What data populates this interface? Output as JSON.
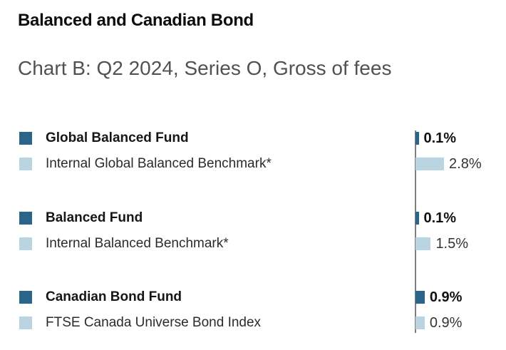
{
  "header": {
    "title": "Balanced and Canadian Bond",
    "subtitle": "Chart B: Q2 2024, Series O, Gross of fees"
  },
  "colors": {
    "fund_bar": "#2A6489",
    "benchmark_bar": "#BAD5E1",
    "axis_line": "#7E7E7E",
    "title_text": "#0D0D0D",
    "subtitle_text": "#4F5255",
    "fund_label_text": "#161616",
    "benchmark_label_text": "#2B2B2B",
    "fund_value_text": "#111111",
    "benchmark_value_text": "#333333"
  },
  "chart_data": {
    "type": "bar",
    "orientation": "horizontal",
    "unit": "%",
    "title": "Balanced and Canadian Bond",
    "subtitle": "Chart B: Q2 2024, Series O, Gross of fees",
    "value_axis": {
      "baseline": 0,
      "gridlines": false,
      "tick_labels": []
    },
    "legend_position": "left-of-rows",
    "groups": [
      {
        "rows": [
          {
            "kind": "fund",
            "label": "Global Balanced Fund",
            "value": 0.1,
            "value_label": "0.1%"
          },
          {
            "kind": "benchmark",
            "label": "Internal Global Balanced Benchmark*",
            "value": 2.8,
            "value_label": "2.8%"
          }
        ]
      },
      {
        "rows": [
          {
            "kind": "fund",
            "label": "Balanced Fund",
            "value": 0.1,
            "value_label": "0.1%"
          },
          {
            "kind": "benchmark",
            "label": "Internal Balanced Benchmark*",
            "value": 1.5,
            "value_label": "1.5%"
          }
        ]
      },
      {
        "rows": [
          {
            "kind": "fund",
            "label": "Canadian Bond Fund",
            "value": 0.9,
            "value_label": "0.9%"
          },
          {
            "kind": "benchmark",
            "label": "FTSE Canada Universe Bond Index",
            "value": 0.9,
            "value_label": "0.9%"
          }
        ]
      }
    ]
  }
}
